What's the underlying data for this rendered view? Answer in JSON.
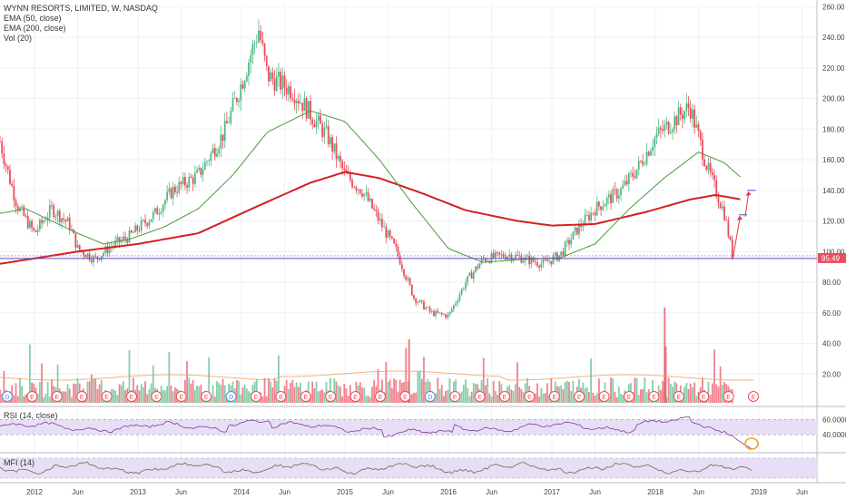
{
  "header": {
    "title": "WYNN RESORTS, LIMITED, W, NASDAQ",
    "studies": [
      "EMA (50, close)",
      "EMA (200, close)",
      "Vol (20)"
    ]
  },
  "rsi_label": "RSI (14, close)",
  "mfi_label": "MFI (14)",
  "last_price_label": "95.49",
  "colors": {
    "up": "#53b987",
    "down": "#eb4d5c",
    "ema50": "#4a9a3e",
    "ema200": "#d32020",
    "baseline": "#4c4cc8",
    "oscillator": "#7b3f9b",
    "mfi": "#6b6b4a",
    "band": "#e8def5",
    "projection": "#e53946",
    "highlight": "#f7a21b"
  },
  "chart_data": {
    "type": "candlestick",
    "symbol": "WYNN RESORTS, LIMITED",
    "interval": "W",
    "exchange": "NASDAQ",
    "price_axis_ticks": [
      "260.00",
      "240.00",
      "220.00",
      "200.00",
      "180.00",
      "160.00",
      "140.00",
      "120.00",
      "100.00",
      "80.00",
      "60.00",
      "40.00",
      "20.00"
    ],
    "rsi_axis_ticks": [
      "60.0000",
      "40.0000"
    ],
    "time_axis_labels": [
      "2012",
      "Jun",
      "2013",
      "Jun",
      "2014",
      "Jun",
      "2015",
      "Jun",
      "2016",
      "Jun",
      "2017",
      "Jun",
      "2018",
      "Jun",
      "2019",
      "Jun"
    ],
    "ylim": [
      0,
      262
    ],
    "last_price": 95.49,
    "horizontal_line": 95.49,
    "price_anchor_points": [
      {
        "x": "2011-09",
        "y": 172
      },
      {
        "x": "2011-10",
        "y": 150
      },
      {
        "x": "2011-11",
        "y": 130
      },
      {
        "x": "2012-01",
        "y": 112
      },
      {
        "x": "2012-03",
        "y": 128
      },
      {
        "x": "2012-05",
        "y": 118
      },
      {
        "x": "2012-06",
        "y": 102
      },
      {
        "x": "2012-08",
        "y": 95
      },
      {
        "x": "2012-10",
        "y": 104
      },
      {
        "x": "2012-12",
        "y": 110
      },
      {
        "x": "2013-03",
        "y": 125
      },
      {
        "x": "2013-05",
        "y": 140
      },
      {
        "x": "2013-08",
        "y": 150
      },
      {
        "x": "2013-11",
        "y": 178
      },
      {
        "x": "2014-01",
        "y": 210
      },
      {
        "x": "2014-03",
        "y": 245
      },
      {
        "x": "2014-04",
        "y": 215
      },
      {
        "x": "2014-07",
        "y": 205
      },
      {
        "x": "2014-09",
        "y": 190
      },
      {
        "x": "2014-11",
        "y": 175
      },
      {
        "x": "2015-01",
        "y": 150
      },
      {
        "x": "2015-03",
        "y": 140
      },
      {
        "x": "2015-05",
        "y": 120
      },
      {
        "x": "2015-07",
        "y": 100
      },
      {
        "x": "2015-09",
        "y": 70
      },
      {
        "x": "2015-11",
        "y": 60
      },
      {
        "x": "2016-01",
        "y": 58
      },
      {
        "x": "2016-03",
        "y": 80
      },
      {
        "x": "2016-05",
        "y": 95
      },
      {
        "x": "2016-08",
        "y": 98
      },
      {
        "x": "2016-10",
        "y": 95
      },
      {
        "x": "2016-12",
        "y": 92
      },
      {
        "x": "2017-02",
        "y": 98
      },
      {
        "x": "2017-04",
        "y": 115
      },
      {
        "x": "2017-06",
        "y": 128
      },
      {
        "x": "2017-09",
        "y": 140
      },
      {
        "x": "2017-11",
        "y": 155
      },
      {
        "x": "2018-01",
        "y": 175
      },
      {
        "x": "2018-03",
        "y": 185
      },
      {
        "x": "2018-05",
        "y": 195
      },
      {
        "x": "2018-06",
        "y": 175
      },
      {
        "x": "2018-07",
        "y": 155
      },
      {
        "x": "2018-08",
        "y": 140
      },
      {
        "x": "2018-09",
        "y": 125
      },
      {
        "x": "2018-10",
        "y": 96
      }
    ],
    "ema50_points": [
      {
        "x": "2011-09",
        "y": 125
      },
      {
        "x": "2011-12",
        "y": 128
      },
      {
        "x": "2012-03",
        "y": 120
      },
      {
        "x": "2012-06",
        "y": 112
      },
      {
        "x": "2012-09",
        "y": 105
      },
      {
        "x": "2012-12",
        "y": 108
      },
      {
        "x": "2013-04",
        "y": 116
      },
      {
        "x": "2013-08",
        "y": 128
      },
      {
        "x": "2013-12",
        "y": 150
      },
      {
        "x": "2014-04",
        "y": 178
      },
      {
        "x": "2014-09",
        "y": 192
      },
      {
        "x": "2015-01",
        "y": 185
      },
      {
        "x": "2015-05",
        "y": 160
      },
      {
        "x": "2015-09",
        "y": 130
      },
      {
        "x": "2016-01",
        "y": 102
      },
      {
        "x": "2016-05",
        "y": 93
      },
      {
        "x": "2016-10",
        "y": 95
      },
      {
        "x": "2017-02",
        "y": 96
      },
      {
        "x": "2017-06",
        "y": 105
      },
      {
        "x": "2017-10",
        "y": 128
      },
      {
        "x": "2018-02",
        "y": 148
      },
      {
        "x": "2018-06",
        "y": 165
      },
      {
        "x": "2018-09",
        "y": 158
      },
      {
        "x": "2018-11",
        "y": 148
      }
    ],
    "ema200_points": [
      {
        "x": "2011-09",
        "y": 92
      },
      {
        "x": "2012-06",
        "y": 100
      },
      {
        "x": "2013-01",
        "y": 105
      },
      {
        "x": "2013-08",
        "y": 112
      },
      {
        "x": "2014-03",
        "y": 130
      },
      {
        "x": "2014-09",
        "y": 145
      },
      {
        "x": "2015-01",
        "y": 152
      },
      {
        "x": "2015-05",
        "y": 148
      },
      {
        "x": "2015-10",
        "y": 138
      },
      {
        "x": "2016-03",
        "y": 127
      },
      {
        "x": "2016-09",
        "y": 120
      },
      {
        "x": "2017-01",
        "y": 117
      },
      {
        "x": "2017-06",
        "y": 118
      },
      {
        "x": "2017-12",
        "y": 126
      },
      {
        "x": "2018-05",
        "y": 134
      },
      {
        "x": "2018-08",
        "y": 137
      },
      {
        "x": "2018-11",
        "y": 134
      }
    ],
    "projection_points": [
      {
        "x": "2018-10",
        "y": 96
      },
      {
        "x": "2018-11",
        "y": 124
      },
      {
        "x": "2018-12",
        "y": 140
      }
    ],
    "volume_ticks": [
      "20.00"
    ],
    "earnings_markers": 31,
    "dividend_markers": 4
  }
}
